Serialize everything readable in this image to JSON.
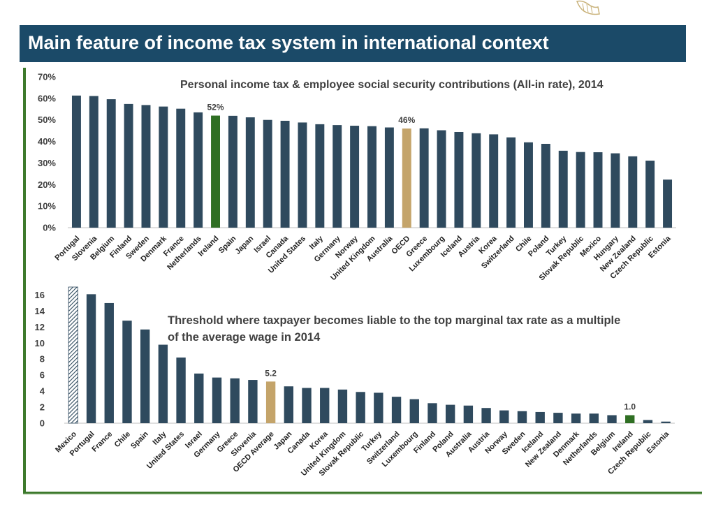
{
  "header": {
    "title": "Main feature of income tax system in international context"
  },
  "colors": {
    "bar": "#2f4a5e",
    "ireland": "#2f6f23",
    "oecd": "#c4a46a",
    "header": "#1b4a68",
    "rule": "#3d7a2c"
  },
  "logo": {
    "icon": "harp-logo-icon"
  },
  "chart_data": [
    {
      "type": "bar",
      "title": "Personal income tax & employee social security contributions (All-in rate), 2014",
      "ylim": [
        0,
        70
      ],
      "yticks": [
        "0%",
        "10%",
        "20%",
        "30%",
        "40%",
        "50%",
        "60%",
        "70%"
      ],
      "categories": [
        "Portugal",
        "Slovenia",
        "Belgium",
        "Finland",
        "Sweden",
        "Denmark",
        "France",
        "Netherlands",
        "Ireland",
        "Spain",
        "Japan",
        "Israel",
        "Canada",
        "United States",
        "Italy",
        "Germany",
        "Norway",
        "United Kingdom",
        "Australia",
        "OECD",
        "Greece",
        "Luxembourg",
        "Iceland",
        "Austria",
        "Korea",
        "Switzerland",
        "Chile",
        "Poland",
        "Turkey",
        "Slovak Republic",
        "Mexico",
        "Hungary",
        "New Zealand",
        "Czech Republic",
        "Estonia"
      ],
      "values": [
        61.3,
        61.1,
        59.6,
        57.4,
        56.9,
        56.2,
        55.2,
        53.5,
        52.0,
        51.9,
        51.2,
        50.0,
        49.6,
        48.8,
        48.0,
        47.6,
        47.3,
        47.1,
        46.5,
        46.0,
        46.1,
        45.2,
        44.4,
        43.8,
        43.3,
        41.9,
        39.6,
        38.9,
        35.7,
        35.1,
        35.0,
        34.5,
        33.1,
        31.1,
        22.3
      ],
      "highlights": {
        "Ireland": "ireland",
        "OECD": "oecd"
      },
      "data_labels": [
        {
          "category": "Ireland",
          "text": "52%"
        },
        {
          "category": "OECD",
          "text": "46%"
        }
      ],
      "grid": false
    },
    {
      "type": "bar",
      "title": "Threshold where taxpayer becomes liable to the top marginal tax rate as a multiple of the average wage in 2014",
      "title_lines": [
        "Threshold where taxpayer becomes liable to the top marginal tax rate as a multiple",
        "of the average wage in 2014"
      ],
      "ylim": [
        0,
        17
      ],
      "yticks": [
        "0",
        "2",
        "4",
        "6",
        "8",
        "10",
        "12",
        "14",
        "16"
      ],
      "categories": [
        "Mexico",
        "Portugal",
        "France",
        "Chile",
        "Spain",
        "Italy",
        "United States",
        "Israel",
        "Germany",
        "Greece",
        "Slovenia",
        "OECD Average",
        "Japan",
        "Canada",
        "Korea",
        "United Kingdom",
        "Slovak Republic",
        "Turkey",
        "Switzerland",
        "Luxembourg",
        "Finland",
        "Poland",
        "Australia",
        "Austria",
        "Norway",
        "Sweden",
        "Iceland",
        "New Zealand",
        "Denmark",
        "Netherlands",
        "Belgium",
        "Ireland",
        "Czech Republic",
        "Estonia"
      ],
      "values": [
        17.0,
        16.1,
        15.0,
        12.8,
        11.7,
        9.8,
        8.2,
        6.2,
        5.7,
        5.6,
        5.4,
        5.2,
        4.6,
        4.4,
        4.4,
        4.2,
        3.9,
        3.8,
        3.3,
        3.0,
        2.5,
        2.3,
        2.2,
        1.9,
        1.6,
        1.5,
        1.4,
        1.3,
        1.2,
        1.2,
        1.0,
        1.0,
        0.4,
        0.2
      ],
      "highlights": {
        "Ireland": "ireland",
        "OECD Average": "oecd"
      },
      "hatched": [
        "Mexico"
      ],
      "data_labels": [
        {
          "category": "OECD Average",
          "text": "5.2"
        },
        {
          "category": "Ireland",
          "text": "1.0"
        }
      ],
      "grid": false
    }
  ]
}
